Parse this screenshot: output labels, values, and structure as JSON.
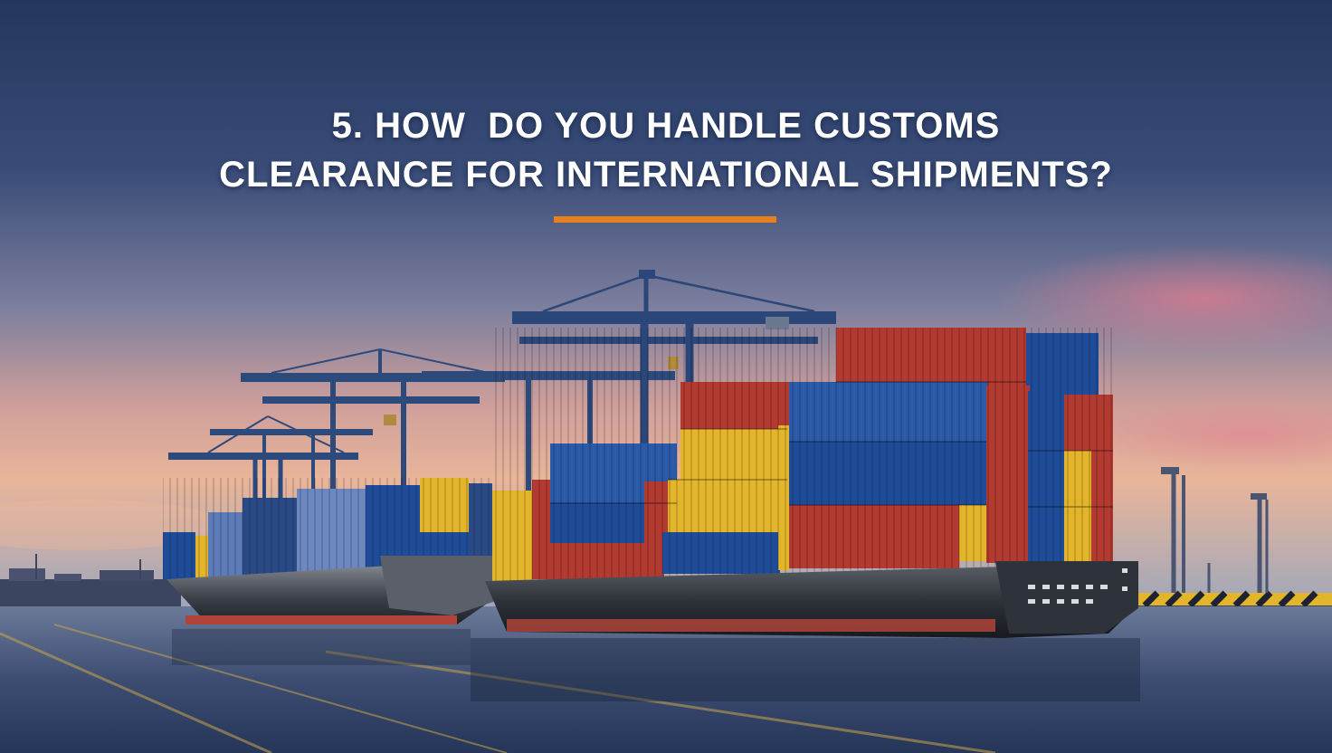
{
  "slide": {
    "title_line1": "5. HOW  DO YOU HANDLE CUSTOMS",
    "title_line2": "CLEARANCE FOR INTERNATIONAL SHIPMENTS?"
  },
  "colors": {
    "accent": "#e8801e",
    "title_text": "#ffffff",
    "sky_top": "#22365f",
    "sky_glow": "#e9a58c",
    "container_red": "#b23a30",
    "container_blue": "#1f4c98",
    "container_yellow": "#e2b52a"
  },
  "scene": {
    "background_icon": "container-port-photo",
    "ships": 2,
    "cranes": 4
  }
}
